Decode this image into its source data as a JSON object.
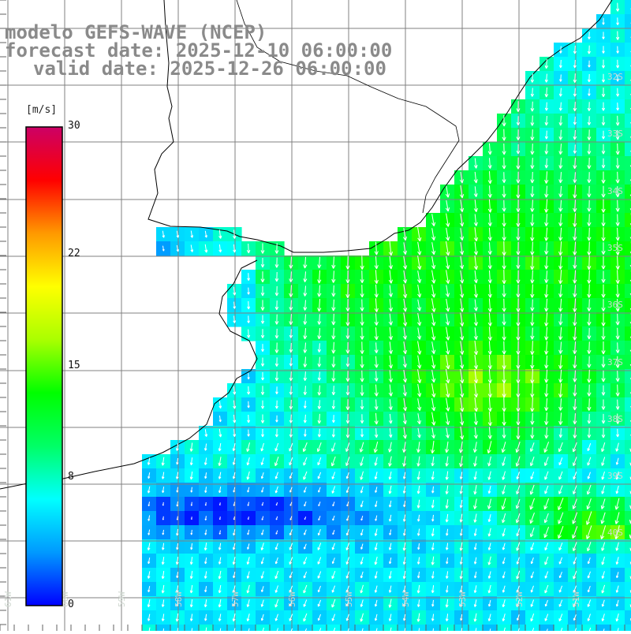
{
  "header": {
    "line1": "modelo GEFS-WAVE (NCEP)",
    "line2": "forecast date: 2025-12-10 06:00:00",
    "line3": "valid date: 2025-12-26 06:00:00"
  },
  "colorbar": {
    "units": "[m/s]",
    "ticks": [
      {
        "label": "30",
        "value": 30
      },
      {
        "label": "22",
        "value": 22
      },
      {
        "label": "15",
        "value": 15
      },
      {
        "label": "8",
        "value": 8
      },
      {
        "label": "0",
        "value": 0
      }
    ],
    "colors": [
      "#0000ff",
      "#0099ff",
      "#00ffff",
      "#00ff66",
      "#00ff00",
      "#aaff00",
      "#ffff00",
      "#ff9900",
      "#ff0000",
      "#cc0066"
    ]
  },
  "lat_labels": [
    "32S",
    "33S",
    "34S",
    "35S",
    "36S",
    "37S",
    "38S",
    "39S",
    "40S"
  ],
  "lon_labels": [
    "61W",
    "60W",
    "59W",
    "58W",
    "57W",
    "56W",
    "55W",
    "54W",
    "53W",
    "52W",
    "51W"
  ],
  "colors": {
    "grid": "#808080",
    "coast": "#000000",
    "arrows": "#ffffff",
    "header": "#8a8a8a"
  }
}
